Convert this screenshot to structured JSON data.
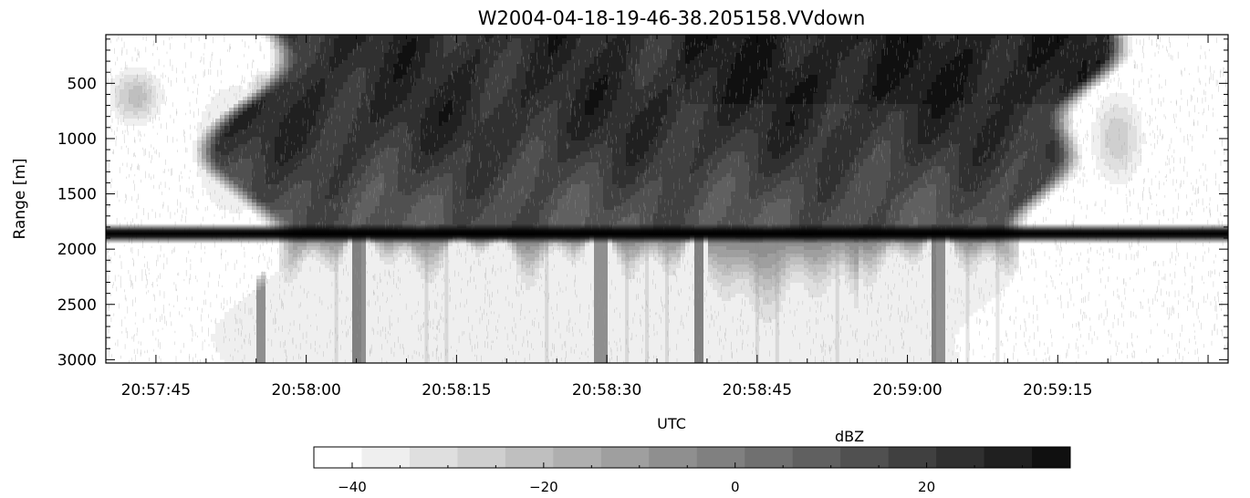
{
  "chart_data": {
    "type": "heatmap",
    "title": "W2004-04-18-19-46-38.205158.VVdown",
    "xlabel": "UTC",
    "ylabel": "Range [m]",
    "x_ticks": [
      "20:57:45",
      "20:58:00",
      "20:58:15",
      "20:58:30",
      "20:58:45",
      "20:59:00",
      "20:59:15"
    ],
    "x_tick_seconds": [
      45,
      60,
      75,
      90,
      105,
      120,
      135
    ],
    "xlim_seconds_after_20_57": [
      40,
      152
    ],
    "y_ticks": [
      500,
      1000,
      1500,
      2000,
      2500,
      3000
    ],
    "ylim": [
      3030,
      60
    ],
    "y_inverted": true,
    "colorbar": {
      "label": "dBZ",
      "min": -44,
      "max": 35,
      "step": 5,
      "ticks": [
        -40,
        -20,
        0,
        20
      ]
    },
    "features": {
      "ground_return_range": 1860,
      "echo_start_seconds": 57,
      "echo_end_seconds": 140
    }
  }
}
